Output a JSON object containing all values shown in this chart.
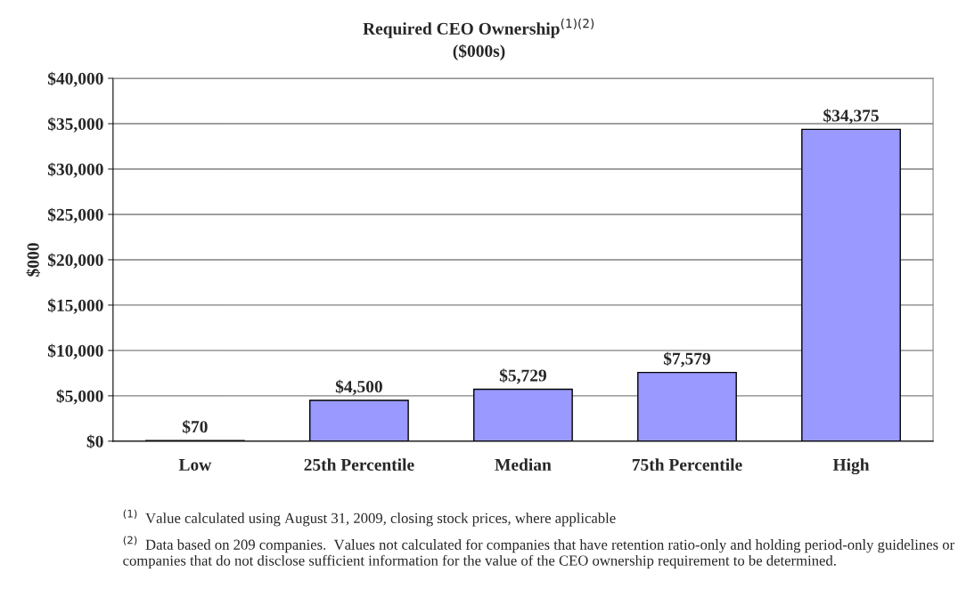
{
  "chart_data": {
    "type": "bar",
    "title": "Required CEO Ownership$^{(1)(2)}$",
    "subtitle": "($000s)",
    "ylabel": "$000",
    "categories": [
      "Low",
      "25th Percentile",
      "Median",
      "75th Percentile",
      "High"
    ],
    "values": [
      70,
      4500,
      5729,
      7579,
      34375
    ],
    "color": "#9999ff",
    "value_labels": [
      "$70",
      "$4,500",
      "$5,729",
      "$7,579",
      "$34,375"
    ],
    "ylim": [
      0,
      40000
    ],
    "yticks": [
      {
        "value": 0,
        "label": "$0"
      },
      {
        "value": 5000,
        "label": "$5,000"
      },
      {
        "value": 10000,
        "label": "$10,000"
      },
      {
        "value": 15000,
        "label": "$15,000"
      },
      {
        "value": 20000,
        "label": "$20,000"
      },
      {
        "value": 25000,
        "label": "$25,000"
      },
      {
        "value": 30000,
        "label": "$30,000"
      },
      {
        "value": 35000,
        "label": "$35,000"
      },
      {
        "value": 40000,
        "label": "$40,000"
      }
    ],
    "grid": "y",
    "legend": false,
    "annotations": [
      "$^{(1)}$  Value calculated using August 31, 2009, closing stock prices, where applicable",
      "$^{(2)}$  Data based on 209 companies.  Values not calculated for companies that have retention ratio-only and holding period-only guidelines or companies that do not disclose sufficient information for the value of the CEO ownership requirement to be determined."
    ]
  }
}
